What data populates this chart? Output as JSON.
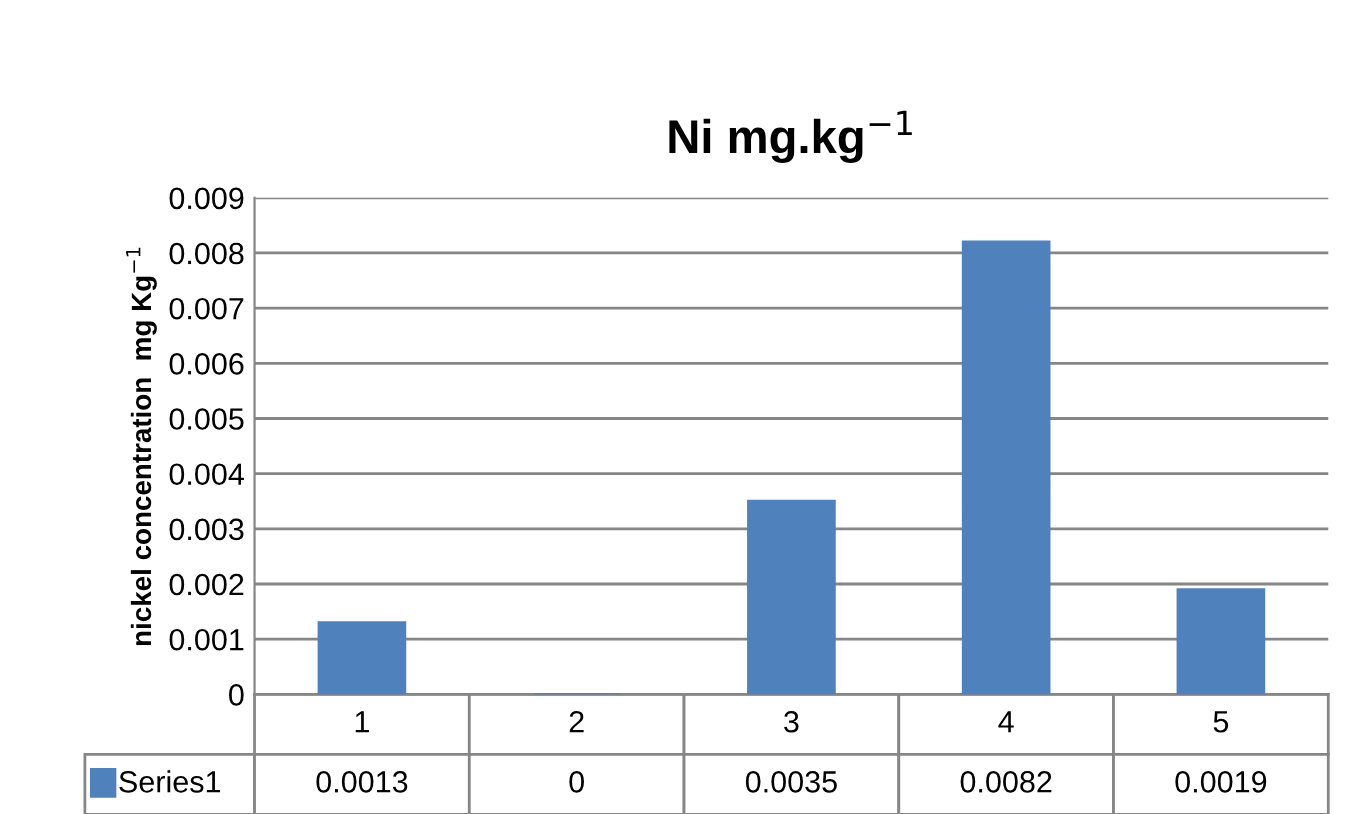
{
  "chart_data": {
    "type": "bar",
    "title": "Ni mg.kg$^{−1}$",
    "ylabel": "nickel concentration  mg Kg$^{−1}$",
    "categories": [
      "1",
      "2",
      "3",
      "4",
      "5"
    ],
    "series": [
      {
        "name": "Series1",
        "color": "#4f81bd",
        "values": [
          0.0013,
          0,
          0.0035,
          0.0082,
          0.0019
        ]
      }
    ],
    "ylim": [
      0,
      0.009
    ],
    "yticks": [
      0,
      0.001,
      0.002,
      0.003,
      0.004,
      0.005,
      0.006,
      0.007,
      0.008,
      0.009
    ],
    "grid": "y",
    "data_labels": true,
    "legend": "bottom"
  }
}
